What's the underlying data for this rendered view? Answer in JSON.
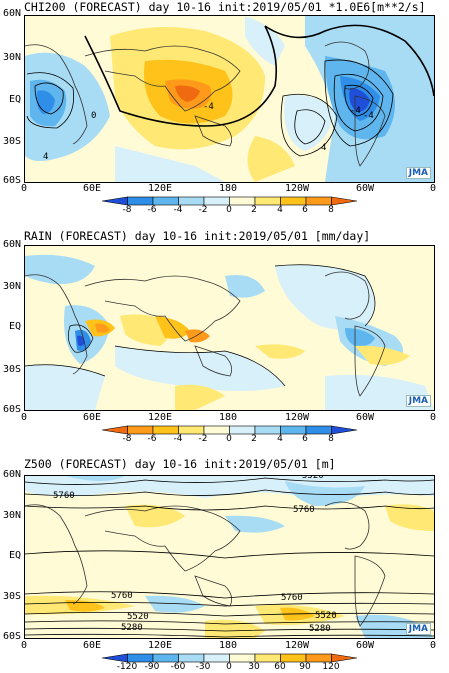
{
  "panels": [
    {
      "title": "CHI200 (FORECAST) day 10-16 init:2019/05/01  *1.0E6[m**2/s]",
      "lat_labels": [
        "60N",
        "30N",
        "EQ",
        "30S",
        "60S"
      ],
      "lon_labels": [
        "0",
        "60E",
        "120E",
        "180",
        "120W",
        "60W",
        "0"
      ],
      "contour_labels": [
        "-4",
        "-4",
        "4",
        "4",
        "0",
        "-4"
      ],
      "colorbar_labels": [
        "-8",
        "-6",
        "-4",
        "-2",
        "0",
        "2",
        "4",
        "6",
        "8"
      ],
      "colorbar_colors": [
        "#1f4fd8",
        "#2e8ee8",
        "#5fb6ee",
        "#a8dcf5",
        "#d8f0fa",
        "#fffbd6",
        "#ffe873",
        "#ffc21a",
        "#ff9a1a",
        "#f06a10"
      ],
      "logo": "JMA"
    },
    {
      "title": "RAIN (FORECAST) day 10-16 init:2019/05/01   [mm/day]",
      "lat_labels": [
        "60N",
        "30N",
        "EQ",
        "30S",
        "60S"
      ],
      "lon_labels": [
        "0",
        "60E",
        "120E",
        "180",
        "120W",
        "60W",
        "0"
      ],
      "contour_labels": [],
      "colorbar_labels": [
        "-8",
        "-6",
        "-4",
        "-2",
        "0",
        "2",
        "4",
        "6",
        "8"
      ],
      "colorbar_colors": [
        "#f06a10",
        "#ff9a1a",
        "#ffc21a",
        "#ffe873",
        "#fffbd6",
        "#d8f0fa",
        "#a8dcf5",
        "#5fb6ee",
        "#2e8ee8",
        "#1f4fd8"
      ],
      "logo": "JMA"
    },
    {
      "title": "Z500 (FORECAST) day 10-16 init:2019/05/01  [m]",
      "lat_labels": [
        "60N",
        "30N",
        "EQ",
        "30S",
        "60S"
      ],
      "lon_labels": [
        "0",
        "60E",
        "120E",
        "180",
        "120W",
        "60W",
        "0"
      ],
      "contour_labels": [
        "5760",
        "5760",
        "5520",
        "5760",
        "5760",
        "5520",
        "5520",
        "5280",
        "5280"
      ],
      "colorbar_labels": [
        "-120",
        "-90",
        "-60",
        "-30",
        "0",
        "30",
        "60",
        "90",
        "120"
      ],
      "colorbar_colors": [
        "#1f4fd8",
        "#2e8ee8",
        "#5fb6ee",
        "#a8dcf5",
        "#d8f0fa",
        "#fffbd6",
        "#ffe873",
        "#ffc21a",
        "#ff9a1a",
        "#f06a10"
      ],
      "logo": "JMA"
    }
  ]
}
